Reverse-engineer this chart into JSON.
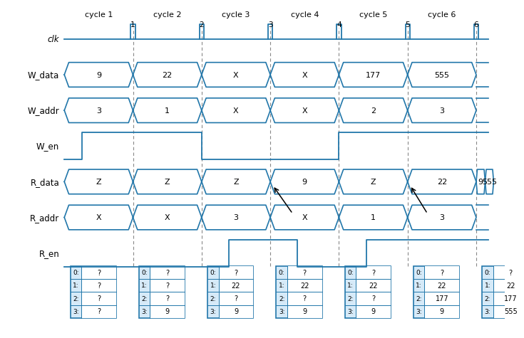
{
  "bg_color": "#ffffff",
  "signal_color": "#2277aa",
  "text_color": "#000000",
  "dashed_color": "#888888",
  "cycle_labels": [
    "cycle 1",
    "cycle 2",
    "cycle 3",
    "cycle 4",
    "cycle 5",
    "cycle 6"
  ],
  "cycle_numbers": [
    "1",
    "2",
    "3",
    "4",
    "5",
    "6"
  ],
  "signal_names": [
    "clk",
    "W_data",
    "W_addr",
    "W_en",
    "R_data",
    "R_addr",
    "R_en"
  ],
  "W_data_vals": [
    "9",
    "22",
    "X",
    "X",
    "177",
    "555"
  ],
  "W_addr_vals": [
    "3",
    "1",
    "X",
    "X",
    "2",
    "3"
  ],
  "R_data_vals": [
    "Z",
    "Z",
    "Z",
    "9",
    "Z",
    "22",
    "9",
    "555"
  ],
  "R_addr_vals": [
    "X",
    "X",
    "3",
    "X",
    "1",
    "3"
  ],
  "mem_contents": [
    {
      "0": "?",
      "1": "?",
      "2": "?",
      "3": "?"
    },
    {
      "0": "?",
      "1": "?",
      "2": "?",
      "3": "9"
    },
    {
      "0": "?",
      "1": "22",
      "2": "?",
      "3": "9"
    },
    {
      "0": "?",
      "1": "22",
      "2": "?",
      "3": "9"
    },
    {
      "0": "?",
      "1": "22",
      "2": "?",
      "3": "9"
    },
    {
      "0": "?",
      "1": "22",
      "2": "177",
      "3": "9"
    },
    {
      "0": "?",
      "1": "22",
      "2": "177",
      "3": "555"
    }
  ]
}
